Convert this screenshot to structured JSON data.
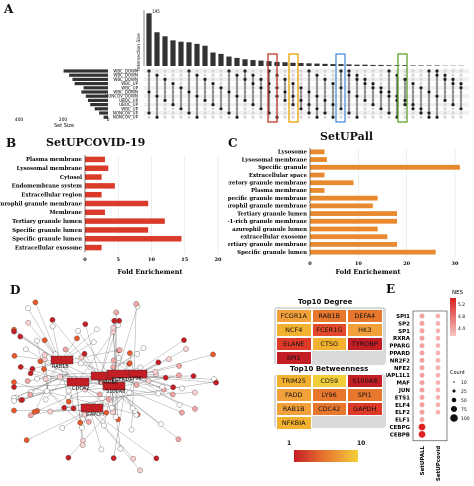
{
  "panels": {
    "a": {
      "letter": "A",
      "ylabel": "Intersection Size",
      "xlabel": "Set Size",
      "sets": [
        "WBC_DOWN",
        "WBC_DOWN",
        "WBC_DOWN",
        "WBC_UP",
        "WBC_UP",
        "WBC_DOWN",
        "NONCOV_DOWN",
        "UBOC_UP",
        "UBOC_UP",
        "WBC_UP",
        "NONCOV_UP",
        "NONCOV_UP"
      ],
      "set_axis_ticks": [
        "400",
        "200",
        "0"
      ],
      "intersection_top": "195",
      "highlight_colors": [
        "#c0392b",
        "#e8a200",
        "#4a90d9",
        "#5aa02c"
      ]
    },
    "b": {
      "letter": "B"
    },
    "c": {
      "letter": "C"
    },
    "d": {
      "letter": "D"
    },
    "e": {
      "letter": "E",
      "legend_nes_title": "NES",
      "legend_nes_ticks": [
        "5.2",
        "4.8",
        "4.4"
      ],
      "legend_count_title": "Count",
      "legend_count_ticks": [
        "10",
        "25",
        "50",
        "75",
        "100"
      ]
    }
  },
  "top10_degree": {
    "title": "Top10 Degree",
    "tiles": [
      {
        "label": "FCGR1A",
        "color": "#f2a13a"
      },
      {
        "label": "RAB1B",
        "color": "#e8772e"
      },
      {
        "label": "DEFA4",
        "color": "#e8772e"
      },
      {
        "label": "NCF4",
        "color": "#f2b12e"
      },
      {
        "label": "FCER1G",
        "color": "#e2482a"
      },
      {
        "label": "HK3",
        "color": "#f2a13a"
      },
      {
        "label": "ELANE",
        "color": "#dd3a28"
      },
      {
        "label": "CTSG",
        "color": "#f2b12e"
      },
      {
        "label": "TYROBP",
        "color": "#c41e25"
      },
      {
        "label": "SPI1",
        "color": "#c41e25"
      }
    ]
  },
  "top10_betweenness": {
    "title": "Top10 Betweenness",
    "tiles": [
      {
        "label": "TRIM25",
        "color": "#f2b12e"
      },
      {
        "label": "CD59",
        "color": "#f2cf3a"
      },
      {
        "label": "S100A8",
        "color": "#c41e25"
      },
      {
        "label": "FADD",
        "color": "#f2a13a"
      },
      {
        "label": "LY96",
        "color": "#e8772e"
      },
      {
        "label": "SPI1",
        "color": "#e8772e"
      },
      {
        "label": "RAB1B",
        "color": "#f2a13a"
      },
      {
        "label": "CDC42",
        "color": "#e8772e"
      },
      {
        "label": "GAPDH",
        "color": "#dd3a28"
      },
      {
        "label": "NFKBIA",
        "color": "#f2b12e"
      }
    ]
  },
  "gradient_legend": {
    "min": "1",
    "max": "10"
  },
  "network_labels": [
    "RAB1B",
    "CDC42",
    "TYROBP",
    "S100A8",
    "LY96",
    "FCER1G",
    "GAPDH"
  ],
  "dotplot": {
    "tfs": [
      "SPI1",
      "SP2",
      "SP1",
      "RXRA",
      "PPARG",
      "PPARD",
      "NR2F2",
      "NFE2",
      "NAPL1L1",
      "MAF",
      "JUN",
      "ETS1",
      "ELF4",
      "ELF2",
      "ELF1",
      "CEBPG",
      "CEBPB"
    ],
    "columns": [
      "SetUPALL",
      "SetUPcovid"
    ]
  },
  "chart_data": [
    {
      "type": "bar",
      "title": "SetUPCOVID-19",
      "xlabel": "Fold Enrichement",
      "xlim": [
        0,
        20
      ],
      "xticks": [
        "0",
        "5",
        "10",
        "15",
        "20"
      ],
      "categories": [
        "Plasma membrane",
        "Lysosomal membrane",
        "Cytosol",
        "Endomembrane system",
        "Extracellular region",
        "Azurophil granule membrane",
        "Membrane",
        "Tertiary granule lumen",
        "Specific granule lumen",
        "Specific granule lumen",
        "Extracellular exosome"
      ],
      "values": [
        3.0,
        3.5,
        2.5,
        4.5,
        2.5,
        9.5,
        3.0,
        12.0,
        9.5,
        14.5,
        2.5
      ],
      "color": "#d93a2a"
    },
    {
      "type": "bar",
      "title": "SetUPall",
      "xlabel": "Fold Enrichement",
      "xlim": [
        0,
        30
      ],
      "xticks": [
        "0",
        "10",
        "20",
        "30"
      ],
      "categories": [
        "Lysosome",
        "Lysosomal membrane",
        "Specific granule",
        "Extracellular space",
        "Secretory granule membrane",
        "Plasma membrane",
        "Specific granule membrane",
        "Azurophil granule membrane",
        "Tertiary granule lumen",
        "Ficolin-1-rich granule membrane",
        "azurophil granule lumen",
        "extracellular exosome",
        "Tertiary granule membrane",
        "Specific granule lumen"
      ],
      "values": [
        3.0,
        3.5,
        31.0,
        3.0,
        9.0,
        3.0,
        14.0,
        13.0,
        18.0,
        18.0,
        14.0,
        16.0,
        18.0,
        26.0
      ],
      "color": "#e8892e"
    },
    {
      "type": "bar",
      "title": "",
      "ylabel": "Intersection Size",
      "values": [
        195,
        125,
        110,
        95,
        90,
        88,
        82,
        75,
        50,
        45,
        35,
        30,
        25,
        22,
        20,
        18,
        15,
        14,
        12,
        11,
        10,
        9,
        8,
        7,
        7,
        6,
        5,
        5,
        4,
        4,
        3,
        3,
        3,
        2,
        2,
        2,
        2,
        1,
        1,
        1
      ],
      "color": "#333333"
    }
  ]
}
